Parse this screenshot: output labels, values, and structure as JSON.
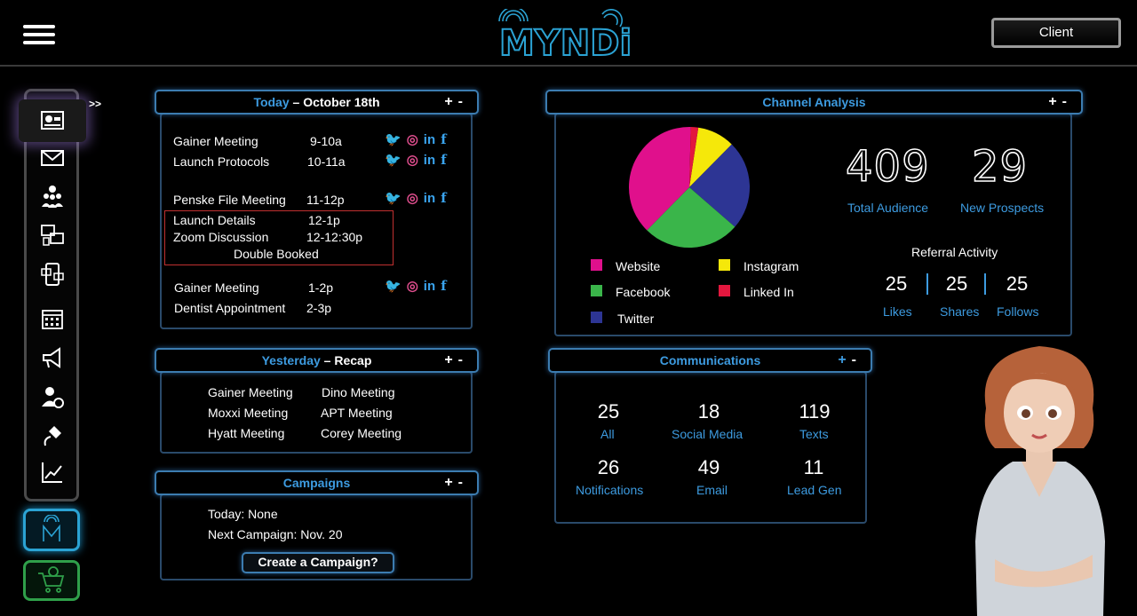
{
  "colors": {
    "accent": "#3d9be0",
    "website": "#e0108c",
    "facebook": "#3ab54a",
    "twitter": "#2d3594",
    "instagram": "#f5e80a",
    "linkedin": "#e3173e"
  },
  "header": {
    "logo_text": "MYNDi",
    "client_label": "Client"
  },
  "sidebar": {
    "expand_label": ">>",
    "icons": [
      "dashboard-icon",
      "mail-icon",
      "team-icon",
      "gallery-icon",
      "mobile-chat-icon",
      "calendar-icon",
      "megaphone-icon",
      "user-settings-icon",
      "plug-icon",
      "chart-icon"
    ]
  },
  "today": {
    "title_prefix": "Today",
    "title_suffix": " – October 18th",
    "add": "+",
    "remove": "-",
    "events": [
      {
        "name": "Gainer Meeting",
        "time": "9-10a"
      },
      {
        "name": "Launch Protocols",
        "time": "10-11a"
      },
      {
        "name": "Penske File Meeting",
        "time": "11-12p"
      },
      {
        "name": "Launch Details",
        "time": "12-1p"
      },
      {
        "name": "Zoom Discussion",
        "time": "12-12:30p"
      },
      {
        "name": "Gainer Meeting",
        "time": "1-2p"
      },
      {
        "name": "Dentist Appointment",
        "time": "2-3p"
      }
    ],
    "conflict_label": "Double Booked"
  },
  "yesterday": {
    "title_prefix": "Yesterday",
    "title_suffix": " – Recap",
    "add": "+",
    "remove": "-",
    "meetings": [
      "Gainer Meeting",
      "Dino Meeting",
      "Moxxi Meeting",
      "APT Meeting",
      "Hyatt Meeting",
      "Corey Meeting"
    ]
  },
  "campaigns": {
    "title": "Campaigns",
    "add": "+",
    "remove": "-",
    "today": "Today: None",
    "next": "Next Campaign: Nov. 20",
    "create_label": "Create a Campaign?"
  },
  "channel": {
    "title": "Channel Analysis",
    "add": "+",
    "remove": "-",
    "total_audience": "409",
    "total_audience_label": "Total Audience",
    "new_prospects": "29",
    "new_prospects_label": "New Prospects",
    "referral_title": "Referral Activity",
    "likes": "25",
    "likes_label": "Likes",
    "shares": "25",
    "shares_label": "Shares",
    "follows": "25",
    "follows_label": "Follows",
    "legend": {
      "website": "Website",
      "instagram": "Instagram",
      "facebook": "Facebook",
      "linkedin": "Linked In",
      "twitter": "Twitter"
    }
  },
  "chart_data": {
    "type": "pie",
    "categories": [
      "Instagram",
      "Twitter",
      "Facebook",
      "Website",
      "Linked In"
    ],
    "values": [
      10,
      24,
      26,
      38,
      2
    ],
    "colors": [
      "#f5e80a",
      "#2d3594",
      "#3ab54a",
      "#e0108c",
      "#e3173e"
    ]
  },
  "communications": {
    "title": "Communications",
    "add": "+",
    "remove": "-",
    "all": "25",
    "all_label": "All",
    "social": "18",
    "social_label": "Social Media",
    "texts": "119",
    "texts_label": "Texts",
    "notifications": "26",
    "notifications_label": "Notifications",
    "email": "49",
    "email_label": "Email",
    "leadgen": "11",
    "leadgen_label": "Lead Gen"
  }
}
